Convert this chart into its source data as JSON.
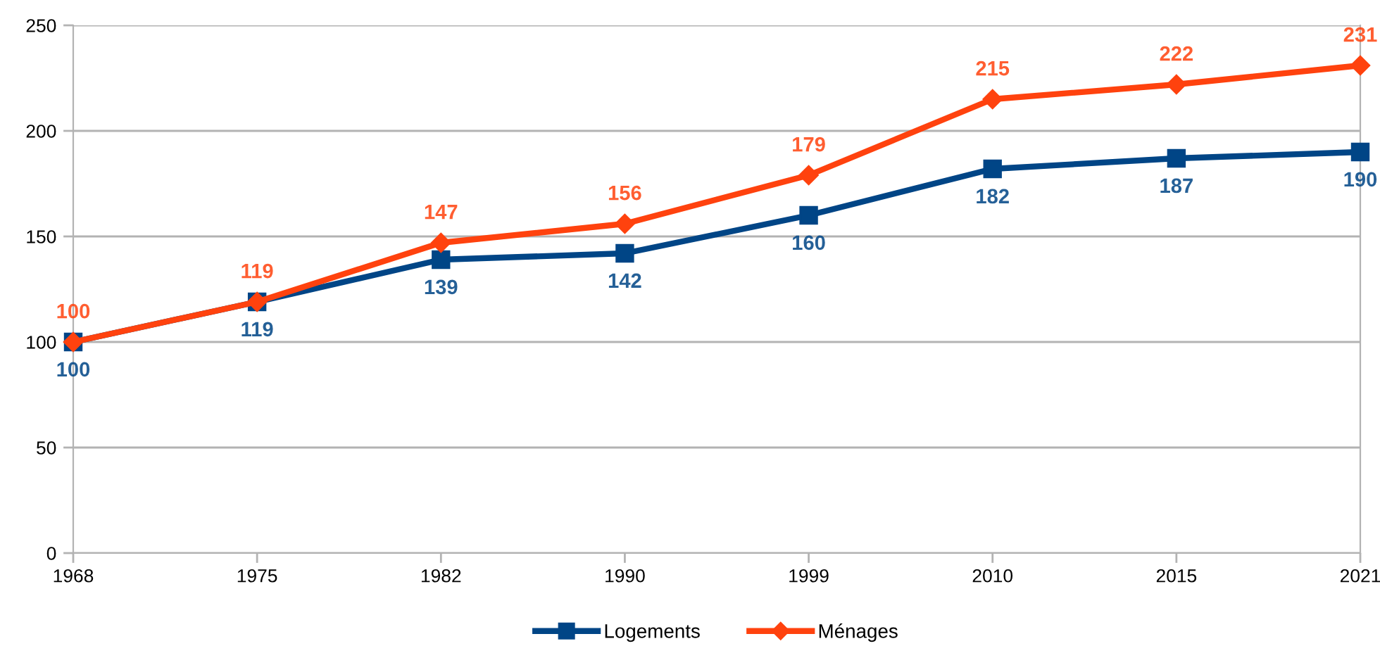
{
  "chart_data": {
    "type": "line",
    "categories": [
      "1968",
      "1975",
      "1982",
      "1990",
      "1999",
      "2010",
      "2015",
      "2021"
    ],
    "series": [
      {
        "name": "Logements",
        "color": "#004586",
        "marker": "square",
        "values": [
          100,
          119,
          139,
          142,
          160,
          182,
          187,
          190
        ]
      },
      {
        "name": "Ménages",
        "color": "#ff420e",
        "marker": "diamond",
        "values": [
          100,
          119,
          147,
          156,
          179,
          215,
          222,
          231
        ]
      }
    ],
    "ylim": [
      0,
      250
    ],
    "yticks": [
      0,
      50,
      100,
      150,
      200,
      250
    ],
    "grid": "y",
    "legend": "bottom",
    "data_labels": true,
    "line_style": "solid"
  }
}
